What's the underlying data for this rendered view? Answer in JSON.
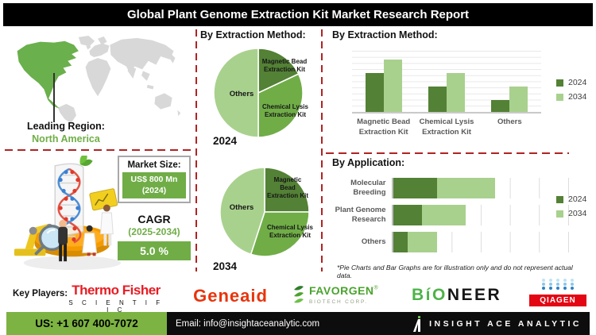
{
  "title": "Global Plant Genome Extraction Kit Market Research Report",
  "left": {
    "leading_region_label": "Leading Region:",
    "leading_region_value": "North America",
    "market_size_label": "Market Size:",
    "market_size_value": "US$ 800 Mn",
    "market_size_year": "(2024)",
    "cagr_label": "CAGR",
    "cagr_period": "(2025-2034)",
    "cagr_value": "5.0 %"
  },
  "middle": {
    "heading": "By Extraction Method:"
  },
  "right": {
    "footnote": "*Pie Charts and Bar Graphs are for illustration only and do not represent actual data."
  },
  "chart_data": [
    {
      "type": "pie",
      "year_label": "2024",
      "labels": [
        "Magnetic Bead Extraction Kit",
        "Chemical Lysis Extraction Kit",
        "Others"
      ],
      "values": [
        18,
        32,
        50
      ],
      "colors": [
        "#538135",
        "#70AD47",
        "#A9D18E"
      ],
      "note": "illustrative only"
    },
    {
      "type": "pie",
      "year_label": "2034",
      "labels": [
        "Magnetic Bead Extraction Kit",
        "Chemical Lysis Extraction Kit",
        "Others"
      ],
      "values": [
        25,
        30,
        45
      ],
      "colors": [
        "#538135",
        "#70AD47",
        "#A9D18E"
      ],
      "note": "illustrative only"
    },
    {
      "type": "bar",
      "title": "By Extraction Method:",
      "categories": [
        [
          "Magnetic Bead",
          "Extraction Kit"
        ],
        [
          "Chemical Lysis",
          "Extraction Kit"
        ],
        [
          "Others"
        ]
      ],
      "series": [
        {
          "name": "2024",
          "color": "#538135",
          "values": [
            64,
            42,
            20
          ]
        },
        {
          "name": "2034",
          "color": "#A9D18E",
          "values": [
            86,
            64,
            42
          ]
        }
      ],
      "ylim": [
        0,
        100
      ],
      "grid": true,
      "legend_position": "right",
      "note": "illustrative only, no value labels shown"
    },
    {
      "type": "stacked-hbar",
      "title": "By Application:",
      "categories": [
        [
          "Molecular",
          "Breeding"
        ],
        [
          "Plant Genome",
          "Research"
        ],
        [
          "Others"
        ]
      ],
      "series": [
        {
          "name": "2024",
          "color": "#538135",
          "values": [
            1.5,
            1.0,
            0.5
          ]
        },
        {
          "name": "2034",
          "color": "#A9D18E",
          "values": [
            2.0,
            1.5,
            1.0
          ]
        }
      ],
      "xlim": [
        0,
        6
      ],
      "grid": true,
      "legend_position": "right",
      "note": "illustrative only, no value labels shown"
    }
  ],
  "key_players": {
    "label": "Key Players:",
    "thermo": {
      "line1": "Thermo Fisher",
      "line2": "S C I E N T I F I C"
    },
    "geneaid": {
      "text": "Geneaid"
    },
    "favorgen": {
      "name": "FAVORGEN",
      "reg": "®",
      "sub": "BIOTECH CORP."
    },
    "bioneer": {
      "b": "B",
      "i": "í",
      "o": "O",
      "rest": "NEER"
    },
    "qiagen": {
      "name": "QIAGEN"
    }
  },
  "contact": {
    "phone": "US: +1 607 400-7072",
    "email": "Email: info@insightaceanalytic.com",
    "brand": "INSIGHT ACE ANALYTIC"
  },
  "colors": {
    "accent_green_dark": "#538135",
    "accent_green_mid": "#70AD47",
    "accent_green_light": "#A9D18E",
    "divider_red": "#B22222",
    "map_green": "#6AB04C",
    "map_gray": "#D8D8D8",
    "bottom_bar_green": "#7CB342",
    "thermo_red": "#E71C23",
    "geneaid_red": "#E8340C",
    "favorgen_green": "#4BA32E",
    "bioneer_green": "#4DB348",
    "qiagen_red": "#E30613"
  }
}
